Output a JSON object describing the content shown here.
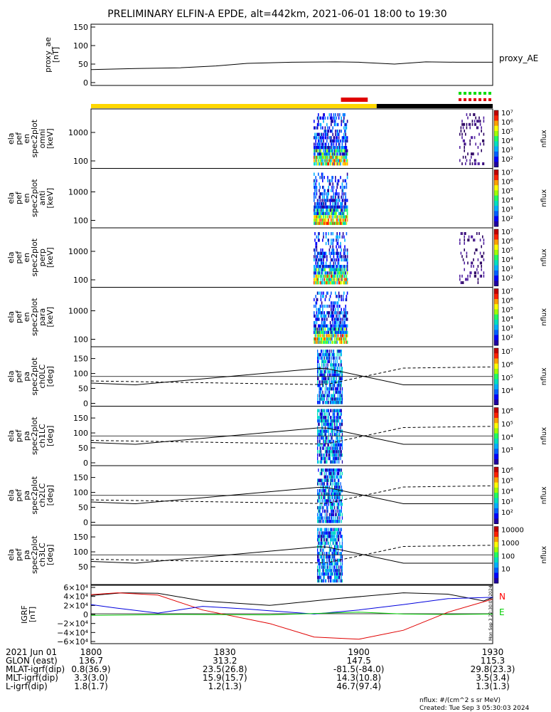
{
  "title": "PRELIMINARY ELFIN-A EPDE, alt=442km, 2021-06-01 18:00 to 19:30",
  "top_panel": {
    "ylabel_lines": [
      "proxy_ae",
      "[nT]"
    ],
    "right_label": "proxy_AE",
    "yticks": [
      "150",
      "100",
      "50",
      "0"
    ]
  },
  "spectrograms": [
    {
      "ylabel_lines": [
        "ela",
        "pef",
        "en",
        "spec2plot",
        "omni",
        "[keV]"
      ],
      "yticks": [
        "1000",
        "100"
      ],
      "cbar_label": "nflux"
    },
    {
      "ylabel_lines": [
        "ela",
        "pef",
        "en",
        "spec2plot",
        "anti",
        "[keV]"
      ],
      "yticks": [
        "1000",
        "100"
      ],
      "cbar_label": "nflux"
    },
    {
      "ylabel_lines": [
        "ela",
        "pef",
        "en",
        "spec2plot",
        "perp",
        "[keV]"
      ],
      "yticks": [
        "1000",
        "100"
      ],
      "cbar_label": "nflux"
    },
    {
      "ylabel_lines": [
        "ela",
        "pef",
        "en",
        "spec2plot",
        "para",
        "[keV]"
      ],
      "yticks": [
        "1000",
        "100"
      ],
      "cbar_label": "nflux"
    }
  ],
  "pa_panels": [
    {
      "ylabel_lines": [
        "ela",
        "pef",
        "pa",
        "spec2plot",
        "ch0LC",
        "[deg]"
      ],
      "yticks": [
        "150",
        "100",
        "50",
        "0"
      ],
      "cbar_ticks": [
        "10⁷",
        "10⁶",
        "10⁵",
        "10⁴"
      ],
      "cbar_label": "nflux"
    },
    {
      "ylabel_lines": [
        "ela",
        "pef",
        "pa",
        "spec2plot",
        "ch1LC",
        "[deg]"
      ],
      "yticks": [
        "150",
        "100",
        "50",
        "0"
      ],
      "cbar_ticks": [
        "10⁶",
        "10⁵",
        "10⁴",
        "10³"
      ],
      "cbar_label": "nflux"
    },
    {
      "ylabel_lines": [
        "ela",
        "pef",
        "pa",
        "spec2plot",
        "ch2LC",
        "[deg]"
      ],
      "yticks": [
        "150",
        "100",
        "50",
        "0"
      ],
      "cbar_ticks": [
        "10⁶",
        "10⁵",
        "10⁴",
        "10³",
        "10²"
      ],
      "cbar_label": "nflux"
    },
    {
      "ylabel_lines": [
        "ela",
        "pef",
        "pa",
        "spec2plot",
        "ch3LC",
        "[deg]"
      ],
      "yticks": [
        "150",
        "100",
        "50"
      ],
      "cbar_ticks": [
        "10000",
        "1000",
        "100",
        "10"
      ],
      "cbar_label": "nflux"
    }
  ],
  "spec_cbar_ticks": [
    "10⁷",
    "10⁶",
    "10⁵",
    "10⁴",
    "10³",
    "10²"
  ],
  "igrf_panel": {
    "ylabel_lines": [
      "IGRF",
      "[nT]"
    ],
    "yticks": [
      "6×10⁴",
      "4×10⁴",
      "2×10⁴",
      "0",
      "−2×10⁴",
      "−4×10⁴",
      "−6×10⁴"
    ],
    "legend": [
      "N",
      "E"
    ],
    "legend_colors": [
      "#ff0000",
      "#00cc00"
    ],
    "side_text": "Mon Sep  3 22:30:03 2024"
  },
  "colors": {
    "mission_bar_sunlit": "#ffd700",
    "mission_bar_shadow": "#000000",
    "science_zone": "#e00000",
    "ibo_green": "#00dd00",
    "ibo_red": "#e00000",
    "bx": "#000000",
    "by": "#0000dd",
    "bz": "#e00000",
    "btotal_green": "#00cc00"
  },
  "chart_data": [
    {
      "type": "line",
      "title": "PRELIMINARY ELFIN-A EPDE, alt=442km, 2021-06-01 18:00 to 19:30",
      "series": [
        {
          "name": "proxy_AE",
          "x_min": [
            0,
            10,
            20,
            28,
            35,
            45,
            55,
            60,
            68,
            75,
            82,
            90
          ],
          "y": [
            35,
            38,
            40,
            45,
            52,
            55,
            56,
            55,
            50,
            56,
            55,
            55
          ]
        }
      ],
      "ylim": [
        0,
        150
      ]
    },
    {
      "type": "heatmap",
      "xlabel_time_range": [
        "1800",
        "1930"
      ],
      "energy_range_keV": [
        60,
        6000
      ],
      "active_intervals_minutes": [
        [
          51,
          60
        ],
        [
          85,
          90
        ]
      ]
    },
    {
      "type": "line",
      "ylim": [
        -60000,
        60000
      ],
      "series": [
        {
          "color": "black",
          "x_min": [
            0,
            7,
            15,
            25,
            40,
            55,
            70,
            80,
            88,
            90
          ],
          "y": [
            42000,
            48000,
            47000,
            30000,
            20000,
            35000,
            48000,
            45000,
            30000,
            38000
          ]
        },
        {
          "color": "red",
          "x_min": [
            0,
            6,
            15,
            25,
            40,
            50,
            60,
            70,
            80,
            90
          ],
          "y": [
            44000,
            48000,
            43000,
            10000,
            -20000,
            -50000,
            -55000,
            -35000,
            5000,
            34000
          ]
        },
        {
          "color": "blue",
          "x_min": [
            0,
            5,
            15,
            25,
            35,
            50,
            60,
            70,
            80,
            90
          ],
          "y": [
            22000,
            15000,
            3000,
            18000,
            12000,
            1000,
            10000,
            22000,
            35000,
            38000
          ]
        },
        {
          "color": "green",
          "x_min": [
            0,
            20,
            40,
            60,
            70,
            80,
            90
          ],
          "y": [
            -2000,
            0,
            -1000,
            5000,
            1000,
            0,
            1000
          ]
        }
      ]
    }
  ],
  "footer": {
    "rows": [
      {
        "label": "2021 Jun 01",
        "values": [
          "1800",
          "1830",
          "1900",
          "1930"
        ]
      },
      {
        "label": "GLON (east)",
        "values": [
          "136.7",
          "313.2",
          "147.5",
          "115.3"
        ]
      },
      {
        "label": "MLAT-igrf(dip)",
        "values": [
          "0.8(36.9)",
          "23.5(26.8)",
          "-81.5(-84.0)",
          "29.8(23.3)"
        ]
      },
      {
        "label": "MLT-igrf(dip)",
        "values": [
          "3.3(3.0)",
          "15.9(15.7)",
          "14.3(10.8)",
          "3.5(3.4)"
        ]
      },
      {
        "label": "L-igrf(dip)",
        "values": [
          "1.8(1.7)",
          "1.2(1.3)",
          "46.7(97.4)",
          "1.3(1.3)"
        ]
      }
    ],
    "nflux_units": "nflux: #/(cm^2 s sr MeV)",
    "created": "Created: Tue Sep  3 05:30:03 2024"
  }
}
